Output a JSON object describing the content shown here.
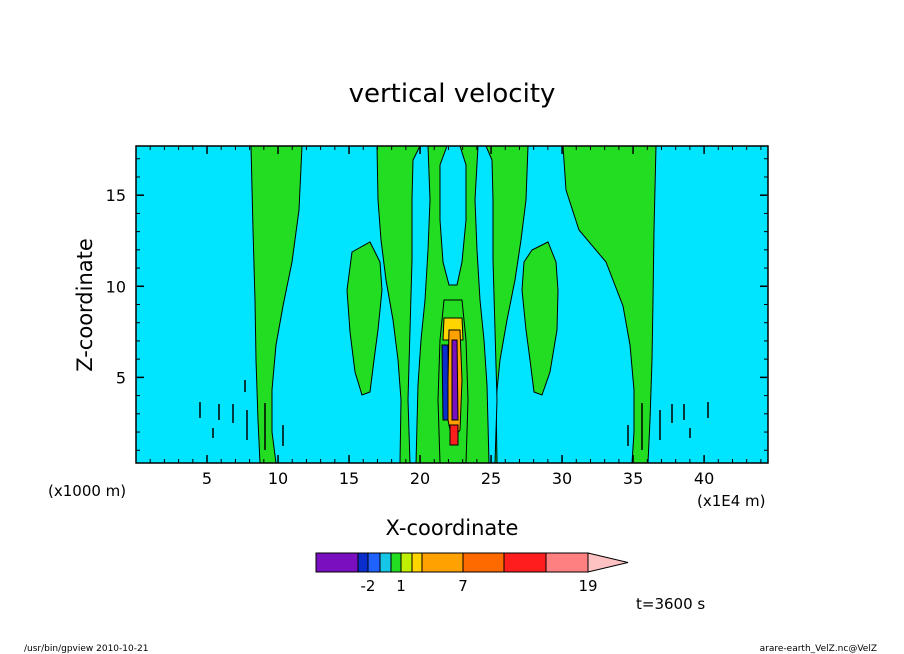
{
  "chart_data": {
    "type": "contour",
    "title": "vertical velocity",
    "xlabel": "X-coordinate",
    "ylabel": "Z-coordinate",
    "x_unit_left": "(x1000 m)",
    "x_unit_right": "(x1E4 m)",
    "xlim": [
      0,
      44.5
    ],
    "ylim": [
      0.3,
      17.7
    ],
    "x_ticks": [
      "5",
      "10",
      "15",
      "20",
      "25",
      "30",
      "35",
      "40"
    ],
    "x_tick_values": [
      5,
      10,
      15,
      20,
      25,
      30,
      35,
      40
    ],
    "y_ticks": [
      "5",
      "10",
      "15"
    ],
    "y_tick_values": [
      5,
      10,
      15
    ],
    "grid": false,
    "background_level_color": "#00e5ff",
    "colorbar": {
      "colors": [
        "#7a0fbf",
        "#0a2ecc",
        "#1f62ff",
        "#16c6e6",
        "#22dd22",
        "#bff000",
        "#ffd500",
        "#ffa100",
        "#ff6a00",
        "#ff1e1e",
        "#ff8080",
        "#ffc2c2"
      ],
      "tick_labels": [
        "-2",
        "1",
        "7",
        "19"
      ],
      "tick_values": [
        -2,
        1,
        7,
        19
      ]
    },
    "time_label": "t=3600 s"
  },
  "footer": {
    "left": "/usr/bin/gpview   2010-10-21",
    "right": "arare-earth_VelZ.nc@VelZ"
  }
}
